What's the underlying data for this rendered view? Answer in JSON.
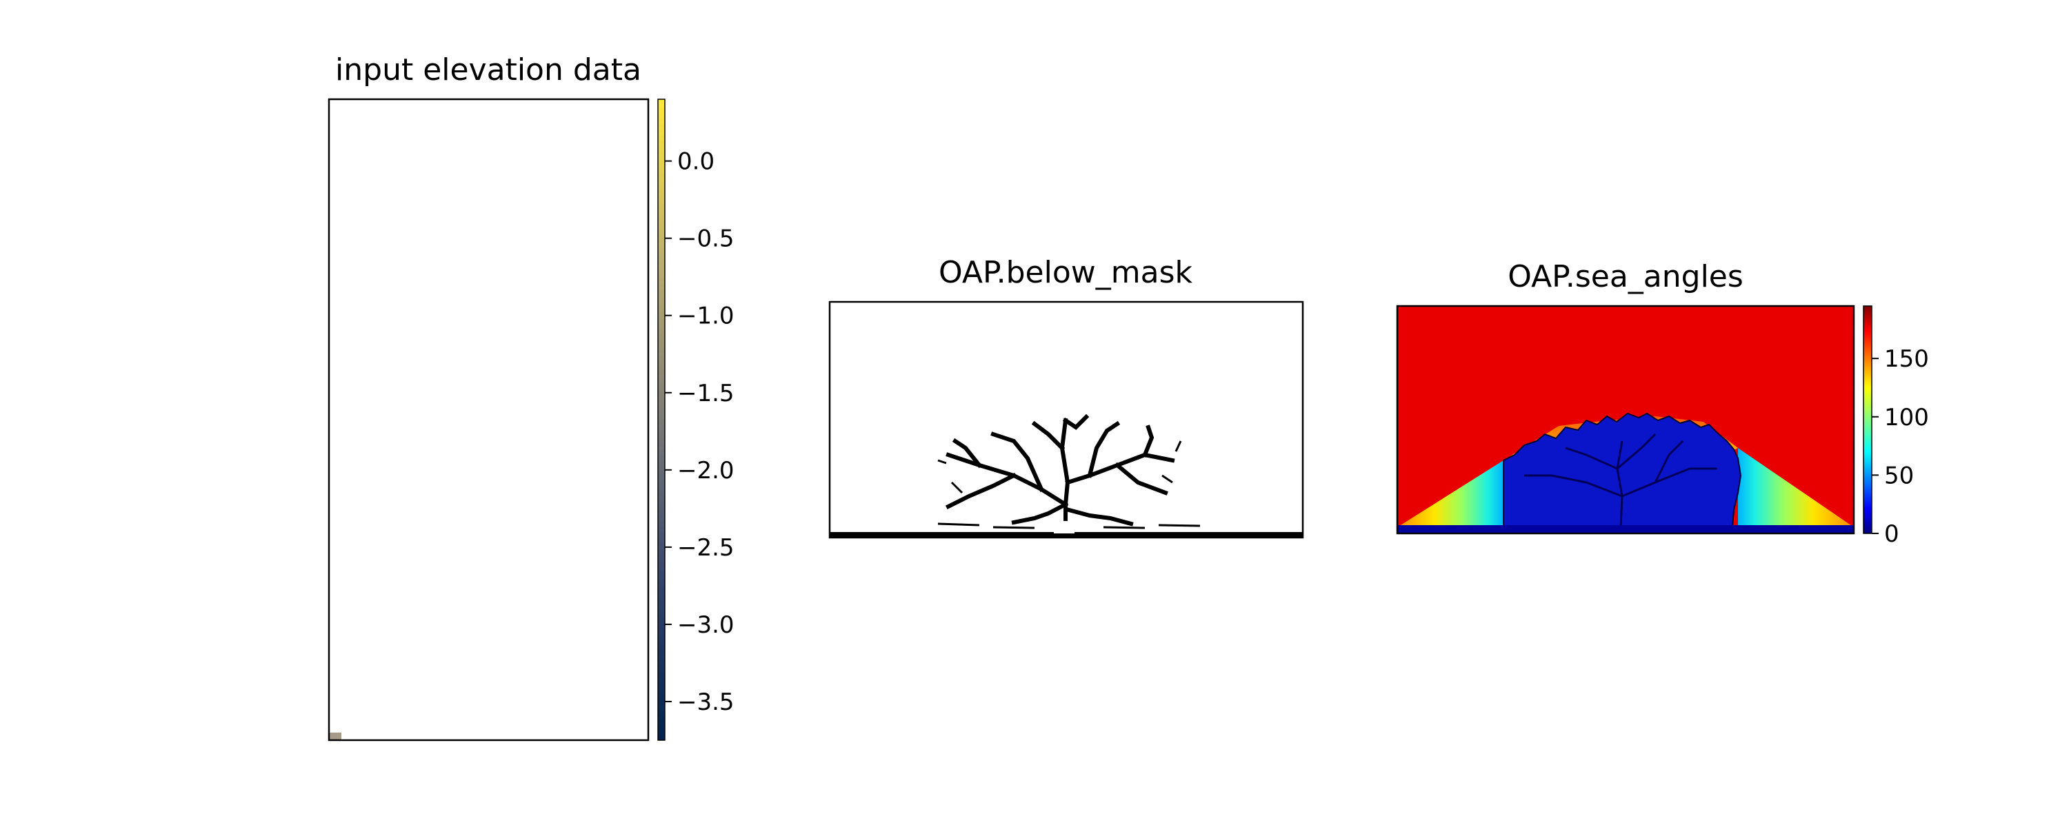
{
  "chart_data": [
    {
      "type": "heatmap",
      "title": "input elevation data",
      "colormap": "cividis",
      "colorbar": {
        "range": [
          -3.75,
          0.4
        ],
        "ticks": [
          0.0,
          -0.5,
          -1.0,
          -1.5,
          -2.0,
          -2.5,
          -3.0,
          -3.5
        ],
        "tick_labels": [
          "0.0",
          "−0.5",
          "−1.0",
          "−1.5",
          "−2.0",
          "−2.5",
          "−3.0",
          "−3.5"
        ]
      },
      "background_color": "#ffffff",
      "note_cell_color": "#a69b88"
    },
    {
      "type": "heatmap",
      "title": "OAP.below_mask",
      "colormap": "binary",
      "colors": {
        "true": "#000000",
        "false": "#ffffff"
      }
    },
    {
      "type": "heatmap",
      "title": "OAP.sea_angles",
      "colormap": "jet",
      "colorbar": {
        "range": [
          0,
          195
        ],
        "ticks": [
          0,
          50,
          100,
          150
        ],
        "tick_labels": [
          "0",
          "50",
          "100",
          "150"
        ]
      },
      "colors": {
        "sea": "#e80000",
        "land": "#00008f",
        "shore_line": "#00009f"
      }
    }
  ]
}
